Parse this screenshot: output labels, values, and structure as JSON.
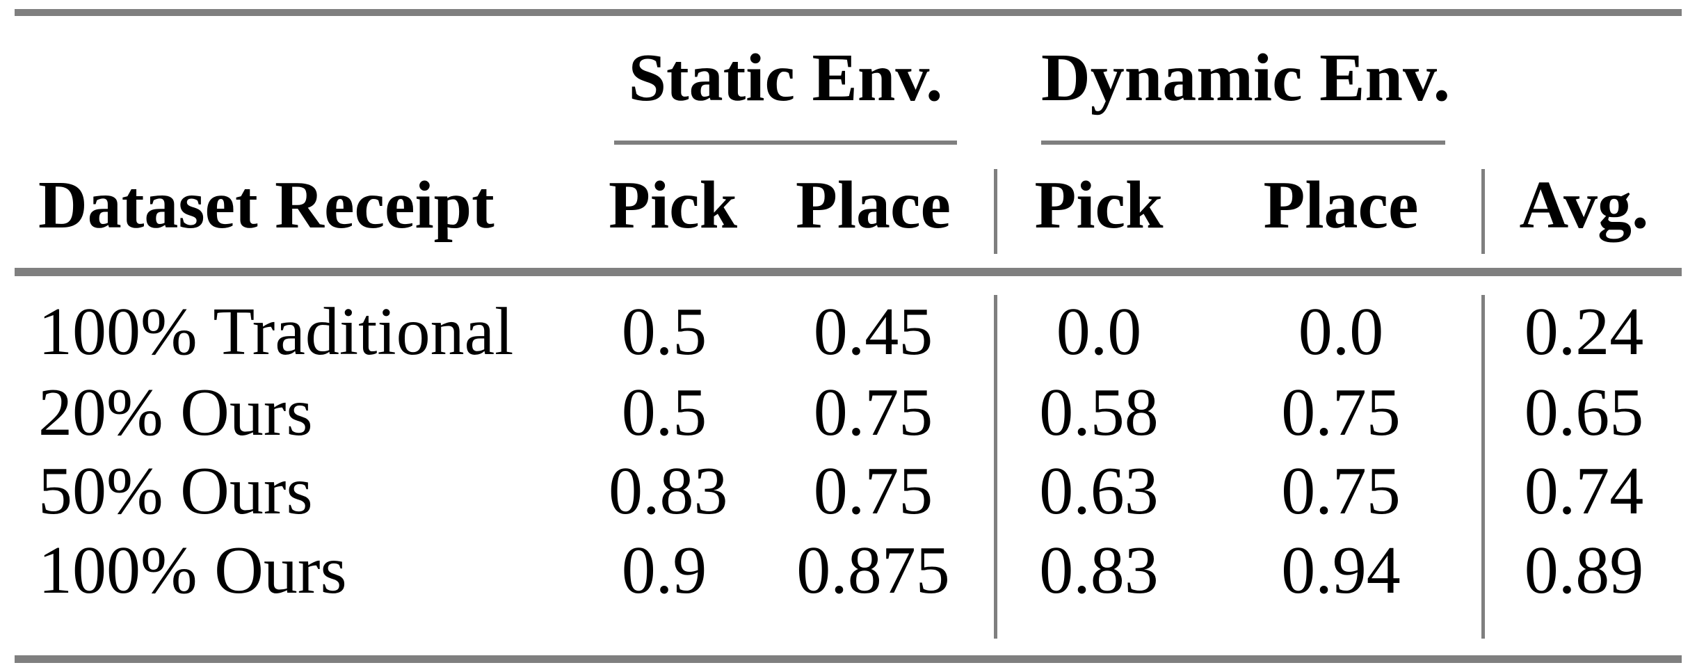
{
  "table": {
    "groups": [
      {
        "label": "Static Env."
      },
      {
        "label": "Dynamic Env."
      }
    ],
    "headers": {
      "row_label": "Dataset Receipt",
      "static_pick": "Pick",
      "static_place": "Place",
      "dynamic_pick": "Pick",
      "dynamic_place": "Place",
      "avg": "Avg."
    },
    "rows": [
      {
        "label": "100% Traditional",
        "static_pick": "0.5",
        "static_place": "0.45",
        "dynamic_pick": "0.0",
        "dynamic_place": "0.0",
        "avg": "0.24"
      },
      {
        "label": "20% Ours",
        "static_pick": "0.5",
        "static_place": "0.75",
        "dynamic_pick": "0.58",
        "dynamic_place": "0.75",
        "avg": "0.65"
      },
      {
        "label": "50% Ours",
        "static_pick": "0.83",
        "static_place": "0.75",
        "dynamic_pick": "0.63",
        "dynamic_place": "0.75",
        "avg": "0.74"
      },
      {
        "label": "100% Ours",
        "static_pick": "0.9",
        "static_place": "0.875",
        "dynamic_pick": "0.83",
        "dynamic_place": "0.94",
        "avg": "0.89"
      }
    ],
    "rule_color": "#7f7f7f",
    "text_color": "#000000"
  },
  "chart_data": {
    "type": "table",
    "column_groups": [
      "Static Env.",
      "Dynamic Env."
    ],
    "columns": [
      "Dataset Receipt",
      "Static Pick",
      "Static Place",
      "Dynamic Pick",
      "Dynamic Place",
      "Avg."
    ],
    "rows": [
      [
        "100% Traditional",
        0.5,
        0.45,
        0.0,
        0.0,
        0.24
      ],
      [
        "20% Ours",
        0.5,
        0.75,
        0.58,
        0.75,
        0.65
      ],
      [
        "50% Ours",
        0.83,
        0.75,
        0.63,
        0.75,
        0.74
      ],
      [
        "100% Ours",
        0.9,
        0.875,
        0.83,
        0.94,
        0.89
      ]
    ]
  }
}
